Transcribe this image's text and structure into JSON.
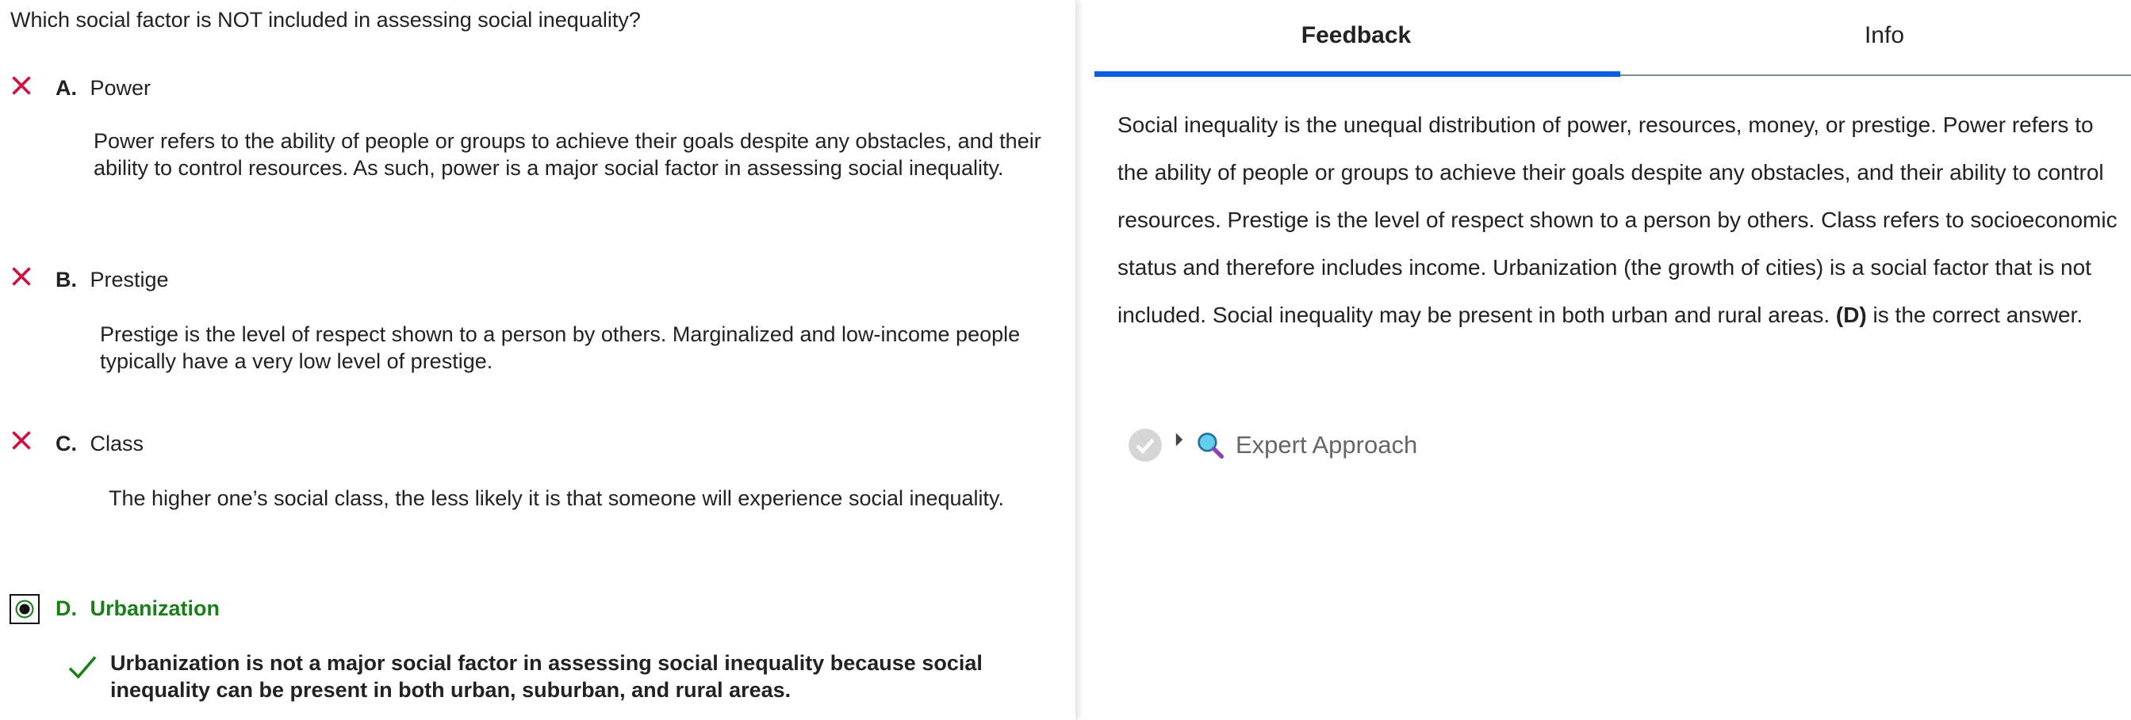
{
  "question": "Which social factor is NOT included in assessing social inequality?",
  "options": [
    {
      "letter": "A.",
      "label": "Power",
      "status": "incorrect",
      "explanation": "Power refers to the ability of people or groups to achieve their goals despite any obstacles, and their ability to control resources. As such, power is a major social factor in assessing social inequality."
    },
    {
      "letter": "B.",
      "label": "Prestige",
      "status": "incorrect",
      "explanation": "Prestige is the level of respect shown to a person by others. Marginalized and low-income people typically have a very low level of prestige."
    },
    {
      "letter": "C.",
      "label": "Class",
      "status": "incorrect",
      "explanation": "The higher one’s social class, the less likely it is that someone will experience social inequality."
    },
    {
      "letter": "D.",
      "label": "Urbanization",
      "status": "selected-correct",
      "explanation": "Urbanization is not a major social factor in assessing social inequality because social inequality can be present in both urban, suburban, and rural areas."
    }
  ],
  "tabs": [
    {
      "label": "Feedback",
      "active": true
    },
    {
      "label": "Info",
      "active": false
    }
  ],
  "feedback": {
    "text_before": "Social inequality is the unequal distribution of power, resources, money, or prestige. Power refers to the ability of people or groups to achieve their goals despite any obstacles, and their ability to control resources. Prestige is the level of respect shown to a person by others. Class refers to socioeconomic status and therefore includes income. Urbanization (the growth of cities) is a social factor that is not included. Social inequality may be present in both urban and rural areas. ",
    "bold": "(D)",
    "text_after": " is the correct answer."
  },
  "expert_approach": {
    "label": "Expert Approach",
    "icons": [
      "check-circle-icon",
      "caret-right-icon",
      "magnifier-icon"
    ]
  },
  "colors": {
    "incorrect": "#d0103a",
    "correct": "#1a7f1a",
    "tab_active": "#0a5fe0",
    "tab_line": "#7f8c8d"
  }
}
